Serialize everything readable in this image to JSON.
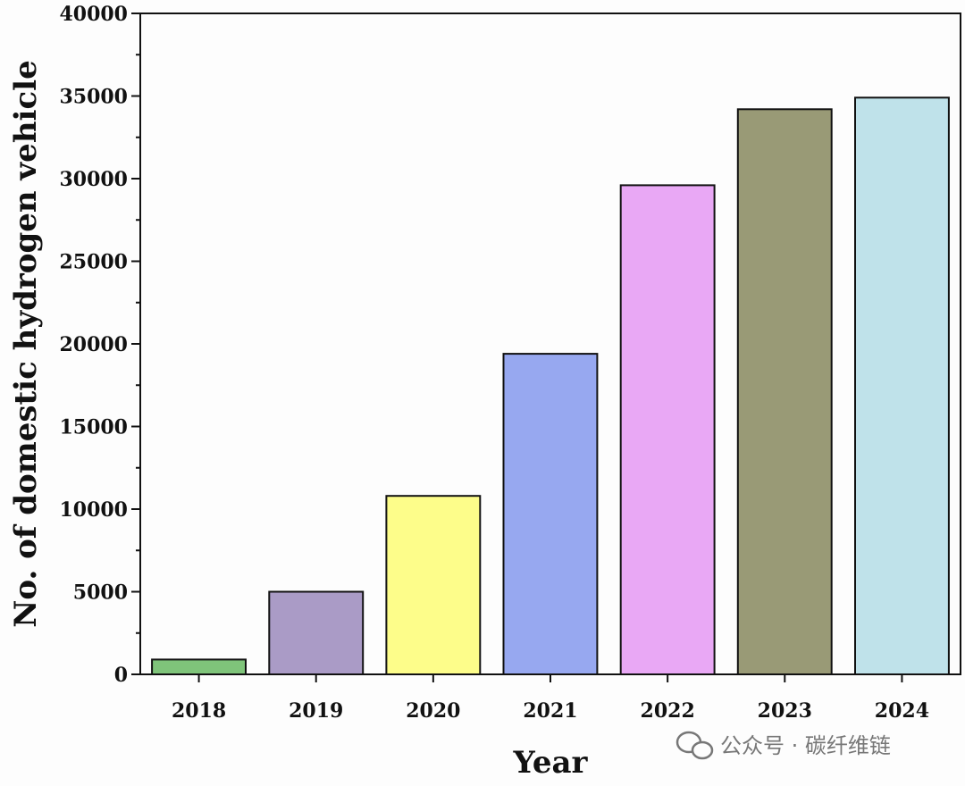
{
  "chart_data": {
    "type": "bar",
    "title": "",
    "xlabel": "Year",
    "ylabel": "No. of domestic hydrogen vehicle",
    "categories": [
      "2018",
      "2019",
      "2020",
      "2021",
      "2022",
      "2023",
      "2024"
    ],
    "values": [
      900,
      5000,
      10800,
      19400,
      29600,
      34200,
      34900
    ],
    "bar_colors": [
      "#7fc47a",
      "#aa9bc6",
      "#fdfd8a",
      "#97a8f0",
      "#e9a8f5",
      "#999a76",
      "#bfe2ea"
    ],
    "ylim": [
      0,
      40000
    ],
    "yticks": [
      0,
      5000,
      10000,
      15000,
      20000,
      25000,
      30000,
      35000,
      40000
    ],
    "grid": false,
    "legend": "none"
  },
  "watermark": {
    "text": "公众号 · 碳纤维链",
    "icon": "wechat-icon"
  }
}
